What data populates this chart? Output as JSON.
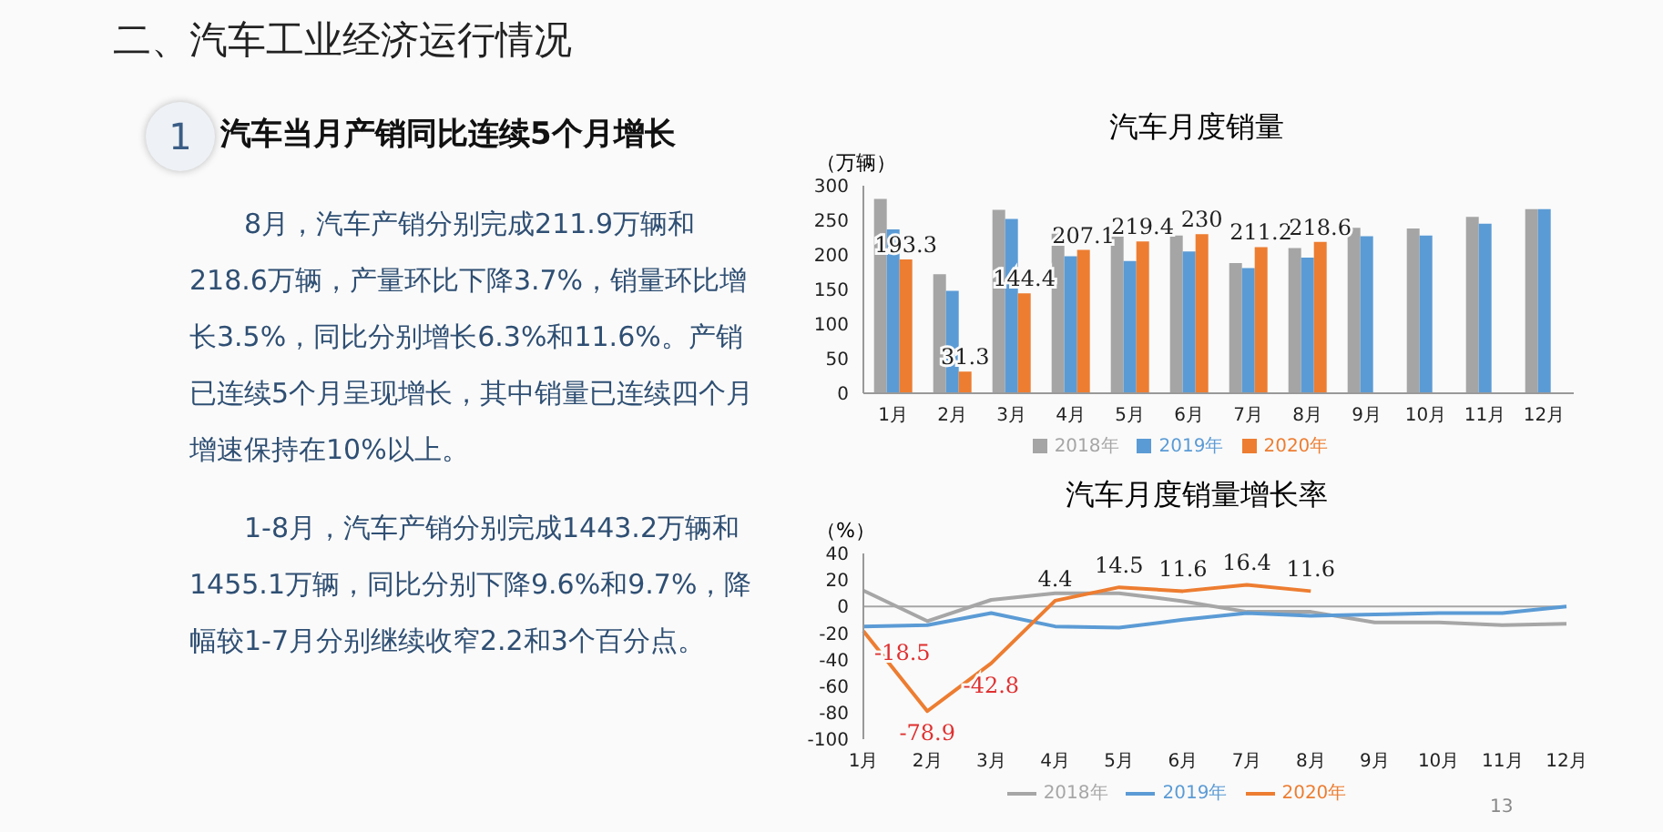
{
  "chart_data": [
    {
      "type": "other",
      "title": "二、汽车工业经济运行情况",
      "subtitle": "汽车当月产销同比连续5个月增长",
      "annotations": [
        "1",
        "8月，汽车产销分别完成211.9万辆和218.6万辆，产量环比下降3.7%，销量环比增长3.5%，同比分别增长6.3%和11.6%。产销已连续5个月呈现增长，其中销量已连续四个月增速保持在10%以上。",
        "1-8月，汽车产销分别完成1443.2万辆和1455.1万辆，同比分别下降9.6%和9.7%，降幅较1-7月分别继续收窄2.2和3个百分点。",
        "13"
      ]
    },
    {
      "type": "bar",
      "title": "汽车月度销量",
      "ylabel": "（万辆）",
      "categories": [
        "1月",
        "2月",
        "3月",
        "4月",
        "5月",
        "6月",
        "7月",
        "8月",
        "9月",
        "10月",
        "11月",
        "12月"
      ],
      "series": [
        {
          "name": "2018年",
          "color": "#a5a5a5",
          "values": [
            281,
            172,
            265,
            232,
            229,
            228,
            188,
            210,
            239,
            238,
            255,
            266
          ]
        },
        {
          "name": "2019年",
          "color": "#5b9bd5",
          "values": [
            237,
            148,
            252,
            198,
            191,
            205,
            181,
            196,
            227,
            228,
            245,
            266
          ]
        },
        {
          "name": "2020年",
          "color": "#ed7d31",
          "values": [
            193.3,
            31.3,
            144.4,
            207.1,
            219.4,
            230,
            211.2,
            218.6,
            null,
            null,
            null,
            null
          ],
          "value_labels": [
            "193.3",
            "31.3",
            "144.4",
            "207.1",
            "219.4",
            "230",
            "211.2",
            "218.6",
            null,
            null,
            null,
            null
          ]
        }
      ],
      "ylim": [
        0,
        300
      ],
      "yticks": [
        0,
        50,
        100,
        150,
        200,
        250,
        300
      ],
      "legend": "bottom"
    },
    {
      "type": "line",
      "title": "汽车月度销量增长率",
      "ylabel": "（%）",
      "categories": [
        "1月",
        "2月",
        "3月",
        "4月",
        "5月",
        "6月",
        "7月",
        "8月",
        "9月",
        "10月",
        "11月",
        "12月"
      ],
      "series": [
        {
          "name": "2018年",
          "color": "#a6a6a6",
          "values": [
            12,
            -11,
            5,
            10,
            10,
            4,
            -4,
            -4,
            -12,
            -12,
            -14,
            -13
          ]
        },
        {
          "name": "2019年",
          "color": "#5b9bd5",
          "values": [
            -15,
            -14,
            -5,
            -15,
            -16,
            -10,
            -5,
            -7,
            -6,
            -5,
            -5,
            0
          ]
        },
        {
          "name": "2020年",
          "color": "#ed7d31",
          "values": [
            -18.5,
            -78.9,
            -42.8,
            4.4,
            14.5,
            11.6,
            16.4,
            11.6,
            null,
            null,
            null,
            null
          ],
          "value_labels": [
            "-18.5",
            "-78.9",
            "-42.8",
            "4.4",
            "14.5",
            "11.6",
            "16.4",
            "11.6",
            null,
            null,
            null,
            null
          ]
        }
      ],
      "ylim": [
        -100,
        40
      ],
      "yticks": [
        -100,
        -80,
        -60,
        -40,
        -20,
        0,
        20,
        40
      ],
      "ref_lines": [
        {
          "axis": "y",
          "value": 0,
          "color": "#a6a6a6"
        }
      ],
      "legend": "bottom"
    }
  ]
}
